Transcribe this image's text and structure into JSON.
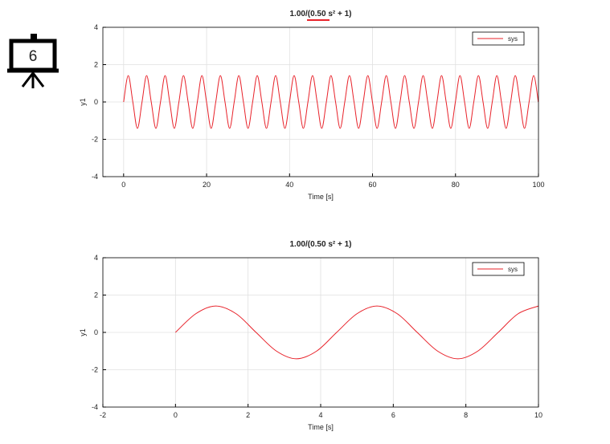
{
  "icon_label": "6",
  "chart_data": [
    {
      "type": "line",
      "title": "1.00/(0.50 s² + 1)",
      "xlabel": "Time [s]",
      "ylabel": "y1",
      "xlim": [
        -5,
        100
      ],
      "xticks": [
        0,
        20,
        40,
        60,
        80,
        100
      ],
      "ylim": [
        -4,
        4
      ],
      "yticks": [
        -4,
        -2,
        0,
        2,
        4
      ],
      "grid": true,
      "legend": "upper right",
      "x": [
        0,
        1.11,
        2.22,
        3.33,
        4.44,
        5.55,
        6.66,
        7.78,
        8.89,
        10.0,
        11.11,
        12.22,
        13.33,
        14.44,
        15.55,
        16.66,
        17.77,
        18.88,
        19.99,
        21.1,
        22.21,
        23.33,
        24.44,
        25.55,
        26.66,
        27.77,
        28.88,
        29.99,
        31.1,
        32.21,
        33.32,
        34.43,
        35.54,
        36.65,
        37.76,
        38.88,
        39.99,
        41.1,
        42.21,
        43.32,
        44.43,
        45.54,
        46.65,
        47.76,
        48.87,
        49.98,
        51.09,
        52.2,
        53.31,
        54.43,
        55.54,
        56.65,
        57.76,
        58.87,
        59.98,
        61.09,
        62.2,
        63.31,
        64.42,
        65.53,
        66.64,
        67.75,
        68.86,
        69.98,
        71.09,
        72.2,
        73.31,
        74.42,
        75.53,
        76.64,
        77.75,
        78.86,
        79.97,
        81.08,
        82.19,
        83.3,
        84.41,
        85.53,
        86.64,
        87.75,
        88.86,
        89.97,
        91.08,
        92.19,
        93.3,
        94.41,
        95.52,
        96.63,
        97.74,
        98.85,
        99.96
      ],
      "series": [
        {
          "name": "sys",
          "color": "#e8222a",
          "values": [
            0,
            1.414,
            0,
            -1.414,
            0,
            1.414,
            0,
            -1.414,
            0,
            1.414,
            0,
            -1.414,
            0,
            1.414,
            0,
            -1.414,
            0,
            1.414,
            0,
            -1.414,
            0,
            1.414,
            0,
            -1.414,
            0,
            1.414,
            0,
            -1.414,
            0,
            1.414,
            0,
            -1.414,
            0,
            1.414,
            0,
            -1.414,
            0,
            1.414,
            0,
            -1.414,
            0,
            1.414,
            0,
            -1.414,
            0,
            1.414,
            0,
            -1.414,
            0,
            1.414,
            0,
            -1.414,
            0,
            1.414,
            0,
            -1.414,
            0,
            1.414,
            0,
            -1.414,
            0,
            1.414,
            0,
            -1.414,
            0,
            1.414,
            0,
            -1.414,
            0,
            1.414,
            0,
            -1.414,
            0,
            1.414,
            0,
            -1.414,
            0,
            1.414,
            0,
            -1.414,
            0,
            1.414,
            0,
            -1.414,
            0,
            1.414,
            0,
            -1.414,
            0,
            1.414,
            0
          ]
        }
      ]
    },
    {
      "type": "line",
      "title": "1.00/(0.50 s² + 1)",
      "xlabel": "Time [s]",
      "ylabel": "y1",
      "xlim": [
        -2,
        10
      ],
      "xticks": [
        -2,
        0,
        2,
        4,
        6,
        8,
        10
      ],
      "ylim": [
        -4,
        4
      ],
      "yticks": [
        -4,
        -2,
        0,
        2,
        4
      ],
      "grid": true,
      "legend": "upper right",
      "x": [
        0,
        0.56,
        1.11,
        1.67,
        2.22,
        2.78,
        3.33,
        3.89,
        4.44,
        5.0,
        5.55,
        6.11,
        6.66,
        7.22,
        7.78,
        8.33,
        8.89,
        9.44,
        10.0
      ],
      "series": [
        {
          "name": "sys",
          "color": "#e8222a",
          "values": [
            0,
            1,
            1.414,
            1,
            0,
            -1,
            -1.414,
            -1,
            0,
            1,
            1.414,
            1,
            0,
            -1,
            -1.414,
            -1,
            0,
            1,
            1.414
          ]
        }
      ]
    }
  ]
}
